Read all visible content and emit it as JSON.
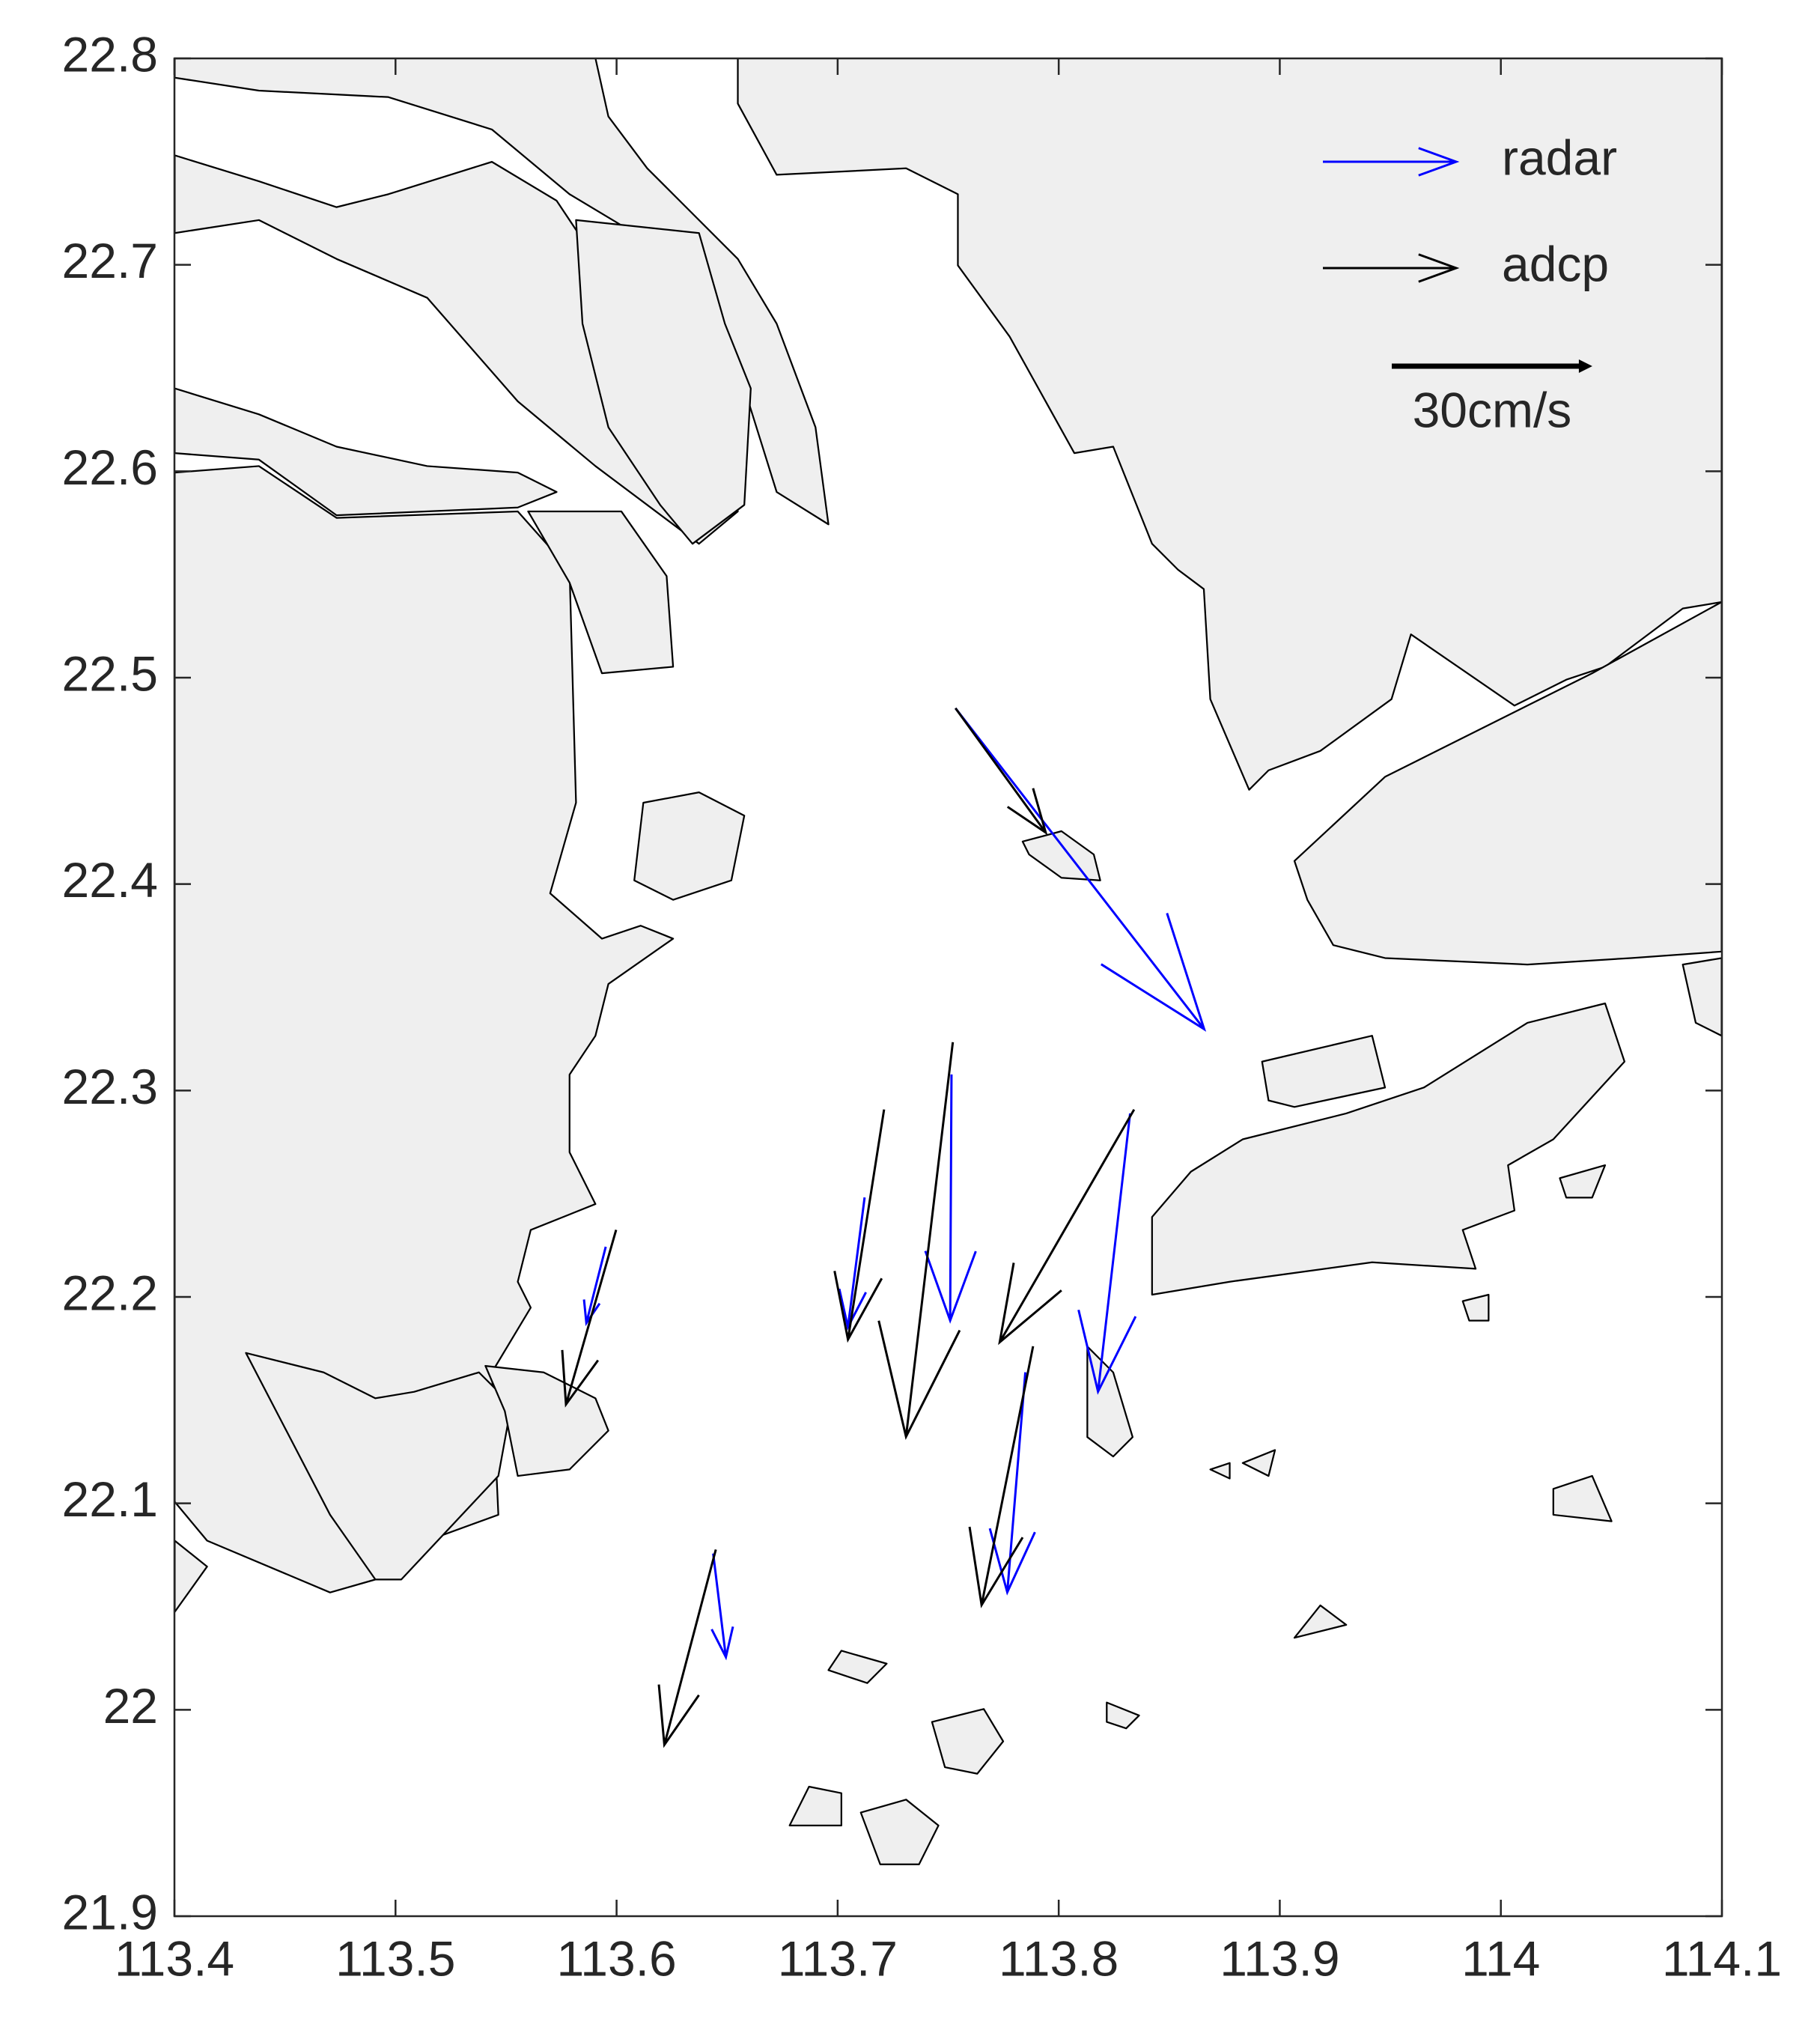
{
  "chart_data": {
    "type": "quiver",
    "xlim": [
      113.4,
      114.1
    ],
    "ylim": [
      21.9,
      22.8
    ],
    "xticks": [
      113.4,
      113.5,
      113.6,
      113.7,
      113.8,
      113.9,
      114,
      114.1
    ],
    "yticks": [
      21.9,
      22,
      22.1,
      22.2,
      22.3,
      22.4,
      22.5,
      22.6,
      22.7,
      22.8
    ],
    "grid": false,
    "legend_location": "northeast",
    "series": [
      {
        "name": "radar",
        "color": "#0000ff",
        "x": [
          113.7533,
          113.7515,
          113.5951,
          113.7122,
          113.8323,
          113.7849,
          113.6437
        ],
        "y": [
          22.4852,
          22.3078,
          22.2243,
          22.2482,
          22.2889,
          22.1635,
          22.0757
        ],
        "u": [
          37.2,
          -0.2,
          -2.9,
          -2.5,
          -4.8,
          -2.7,
          1.9
        ],
        "v": [
          -48.0,
          -36.8,
          -11.4,
          -19.4,
          -41.6,
          -32.9,
          -15.5
        ]
      },
      {
        "name": "adcp",
        "color": "#000000",
        "x": [
          113.7533,
          113.7521,
          113.721,
          113.8341,
          113.5998,
          113.7884,
          113.6449
        ],
        "y": [
          22.4852,
          22.3234,
          22.2908,
          22.2908,
          22.2325,
          22.1761,
          22.0776
        ],
        "u": [
          13.5,
          -7.0,
          -5.4,
          -20.1,
          -7.5,
          -7.7,
          -7.7
        ],
        "v": [
          -18.6,
          -59.0,
          -34.4,
          -34.8,
          -26.1,
          -38.7,
          -29.2
        ]
      }
    ],
    "reference": {
      "value": 30,
      "label": "30cm/s"
    }
  }
}
